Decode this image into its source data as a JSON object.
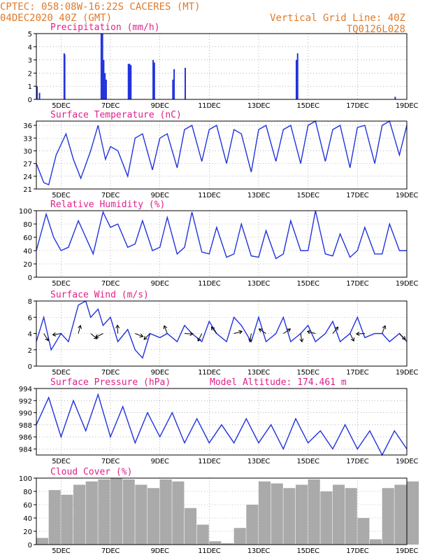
{
  "header": {
    "line1_left": "CPTEC:   058:08W-16:22S   CACERES (MT)",
    "line2_left": "04DEC2020 40Z (GMT)",
    "line1_right": "Vertical Grid Line: 40Z",
    "line2_right": "TQ0126L028",
    "extra": "Model Altitude: 174.461 m"
  },
  "colors": {
    "header": "#e07a2a",
    "title": "#e0208a",
    "series": "#2233dd",
    "cloud": "#aaaaaa",
    "grid": "#888888"
  },
  "x_axis": {
    "ticks": [
      {
        "day": 5,
        "label": "5DEC"
      },
      {
        "day": 7,
        "label": "7DEC"
      },
      {
        "day": 9,
        "label": "9DEC"
      },
      {
        "day": 11,
        "label": "11DEC"
      },
      {
        "day": 13,
        "label": "13DEC"
      },
      {
        "day": 15,
        "label": "15DEC"
      },
      {
        "day": 17,
        "label": "17DEC"
      },
      {
        "day": 19,
        "label": "19DEC"
      }
    ],
    "range": [
      4.0,
      19.0
    ]
  },
  "chart_data": [
    {
      "type": "bar",
      "title": "Precipitation (mm/h)",
      "ylim": [
        0,
        5
      ],
      "yticks": [
        0,
        1,
        2,
        3,
        4,
        5
      ],
      "x": [
        4.0,
        4.1,
        5.1,
        5.12,
        6.6,
        6.65,
        6.7,
        6.75,
        6.8,
        7.7,
        7.75,
        7.8,
        8.7,
        8.75,
        9.5,
        9.55,
        10.0,
        14.5,
        14.55,
        18.5
      ],
      "values": [
        1.0,
        0.5,
        3.5,
        3.4,
        5.0,
        5.0,
        3.0,
        2.0,
        1.5,
        2.7,
        2.7,
        2.6,
        3.0,
        2.8,
        1.5,
        2.3,
        2.4,
        3.0,
        3.5,
        0.2
      ]
    },
    {
      "type": "line",
      "title": "Surface Temperature (nC)",
      "ylim": [
        21,
        37
      ],
      "yticks": [
        21,
        24,
        27,
        30,
        33,
        36
      ],
      "x": [
        4.0,
        4.3,
        4.5,
        4.8,
        5.2,
        5.5,
        5.8,
        6.2,
        6.5,
        6.8,
        7.0,
        7.3,
        7.7,
        8.0,
        8.3,
        8.7,
        9.0,
        9.3,
        9.7,
        10.0,
        10.3,
        10.7,
        11.0,
        11.3,
        11.7,
        12.0,
        12.3,
        12.7,
        13.0,
        13.3,
        13.7,
        14.0,
        14.3,
        14.7,
        15.0,
        15.3,
        15.7,
        16.0,
        16.3,
        16.7,
        17.0,
        17.3,
        17.7,
        18.0,
        18.3,
        18.7,
        19.0
      ],
      "values": [
        27,
        22.5,
        22,
        29,
        34,
        28,
        23.5,
        30,
        36,
        28,
        31,
        30,
        24,
        33,
        34,
        25.5,
        33,
        34,
        26,
        35,
        36,
        27.5,
        35,
        36,
        27,
        35,
        34,
        25,
        35,
        36,
        27.5,
        35,
        36,
        27,
        36,
        37,
        27.5,
        35,
        36,
        26,
        35.5,
        36,
        27,
        36,
        37,
        29,
        36
      ]
    },
    {
      "type": "line",
      "title": "Relative Humidity (%)",
      "ylim": [
        0,
        100
      ],
      "yticks": [
        0,
        20,
        40,
        60,
        80,
        100
      ],
      "x": [
        4.0,
        4.4,
        4.7,
        5.0,
        5.3,
        5.7,
        6.0,
        6.3,
        6.7,
        7.0,
        7.3,
        7.7,
        8.0,
        8.3,
        8.7,
        9.0,
        9.3,
        9.7,
        10.0,
        10.3,
        10.7,
        11.0,
        11.3,
        11.7,
        12.0,
        12.3,
        12.7,
        13.0,
        13.3,
        13.7,
        14.0,
        14.3,
        14.7,
        15.0,
        15.3,
        15.7,
        16.0,
        16.3,
        16.7,
        17.0,
        17.3,
        17.7,
        18.0,
        18.3,
        18.7,
        19.0
      ],
      "values": [
        40,
        95,
        60,
        40,
        45,
        85,
        60,
        35,
        98,
        75,
        80,
        45,
        50,
        85,
        40,
        45,
        90,
        35,
        45,
        98,
        38,
        35,
        75,
        30,
        35,
        80,
        32,
        30,
        70,
        28,
        35,
        85,
        40,
        40,
        100,
        35,
        32,
        65,
        30,
        40,
        75,
        35,
        35,
        80,
        40,
        40
      ]
    },
    {
      "type": "line",
      "title": "Surface Wind (m/s)",
      "ylim": [
        0,
        8
      ],
      "yticks": [
        0,
        2,
        4,
        6,
        8
      ],
      "x": [
        4.0,
        4.3,
        4.6,
        5.0,
        5.3,
        5.7,
        6.0,
        6.2,
        6.5,
        6.7,
        7.0,
        7.3,
        7.7,
        8.0,
        8.3,
        8.6,
        9.0,
        9.3,
        9.7,
        10.0,
        10.3,
        10.7,
        11.0,
        11.3,
        11.7,
        12.0,
        12.3,
        12.7,
        13.0,
        13.3,
        13.7,
        14.0,
        14.3,
        14.7,
        15.0,
        15.3,
        15.7,
        16.0,
        16.3,
        16.7,
        17.0,
        17.3,
        17.7,
        18.0,
        18.3,
        18.7,
        19.0
      ],
      "values": [
        3,
        6,
        2,
        4,
        3,
        7.5,
        8,
        6,
        7,
        5,
        6,
        3,
        4.5,
        2,
        1,
        4,
        3.5,
        4,
        3,
        5,
        4,
        3,
        5.5,
        4,
        3,
        6,
        5,
        3,
        6,
        3,
        4,
        6,
        3,
        4,
        5,
        3,
        4,
        5.5,
        3,
        4,
        6,
        3.5,
        4,
        4,
        3,
        4,
        3
      ]
    },
    {
      "type": "line",
      "title": "Surface Pressure (hPa)",
      "ylim": [
        983,
        994
      ],
      "yticks": [
        984,
        986,
        988,
        990,
        992,
        994
      ],
      "x": [
        4.0,
        4.5,
        5.0,
        5.5,
        6.0,
        6.5,
        7.0,
        7.5,
        8.0,
        8.5,
        9.0,
        9.5,
        10.0,
        10.5,
        11.0,
        11.5,
        12.0,
        12.5,
        13.0,
        13.5,
        14.0,
        14.5,
        15.0,
        15.5,
        16.0,
        16.5,
        17.0,
        17.5,
        18.0,
        18.5,
        19.0
      ],
      "values": [
        988,
        992.5,
        986,
        992,
        987,
        993,
        986,
        991,
        985,
        990,
        986,
        990,
        985,
        989,
        985,
        988,
        985,
        989,
        985,
        988,
        984,
        989,
        985,
        987,
        984,
        988,
        984,
        987,
        983,
        987,
        984
      ]
    },
    {
      "type": "bar",
      "title": "Cloud Cover (%)",
      "ylim": [
        0,
        100
      ],
      "yticks": [
        0,
        20,
        40,
        60,
        80,
        100
      ],
      "x": [
        4.0,
        4.5,
        5.0,
        5.5,
        6.0,
        6.5,
        7.0,
        7.5,
        8.0,
        8.5,
        9.0,
        9.5,
        10.0,
        10.5,
        11.0,
        11.5,
        12.0,
        12.5,
        13.0,
        13.5,
        14.0,
        14.5,
        15.0,
        15.5,
        16.0,
        16.5,
        17.0,
        17.5,
        18.0,
        18.5,
        19.0
      ],
      "values": [
        10,
        82,
        75,
        90,
        95,
        98,
        100,
        98,
        90,
        85,
        98,
        95,
        55,
        30,
        5,
        2,
        25,
        60,
        95,
        92,
        85,
        90,
        98,
        80,
        90,
        85,
        40,
        8,
        85,
        90,
        95
      ]
    }
  ]
}
